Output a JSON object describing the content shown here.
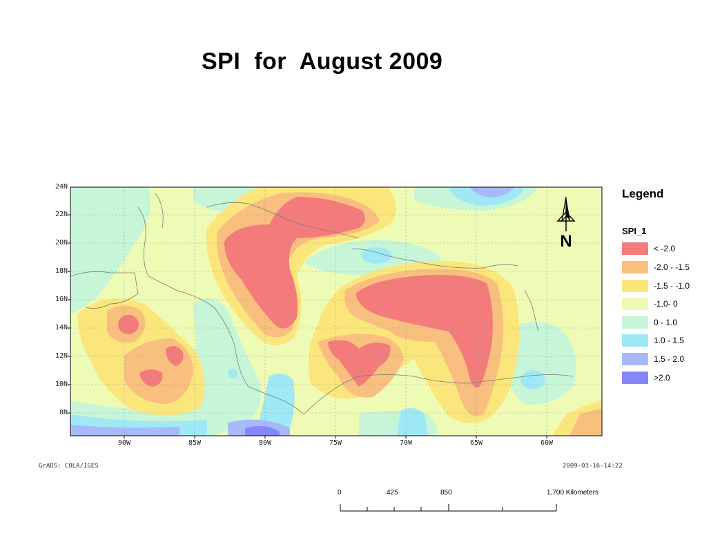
{
  "title": "SPI  for  August 2009",
  "map": {
    "lat_labels": [
      "24N",
      "22N",
      "20N",
      "18N",
      "16N",
      "14N",
      "12N",
      "10N",
      "8N"
    ],
    "lon_labels": [
      "90W",
      "85W",
      "80W",
      "75W",
      "70W",
      "65W",
      "60W"
    ],
    "credit_left": "GrADS: COLA/IGES",
    "credit_right": "2009-03-16-14:22"
  },
  "legend": {
    "title": "Legend",
    "field": "SPI_1",
    "classes": [
      {
        "label": "< -2.0",
        "color": "#f47b7b"
      },
      {
        "label": "-2.0 - -1.5",
        "color": "#f9bf7e"
      },
      {
        "label": "-1.5 - -1.0",
        "color": "#fbe67c"
      },
      {
        "label": "-1.0- 0",
        "color": "#eefbb4"
      },
      {
        "label": "0 - 1.0",
        "color": "#c6f5d8"
      },
      {
        "label": "1.0 - 1.5",
        "color": "#9fe9f6"
      },
      {
        "label": "1.5 - 2.0",
        "color": "#a7b9fb"
      },
      {
        "label": ">2.0",
        "color": "#8686fb"
      }
    ]
  },
  "north_arrow": {
    "label": "N"
  },
  "scale": {
    "labels": [
      "0",
      "425",
      "850",
      "1,700 Kilometers"
    ]
  }
}
